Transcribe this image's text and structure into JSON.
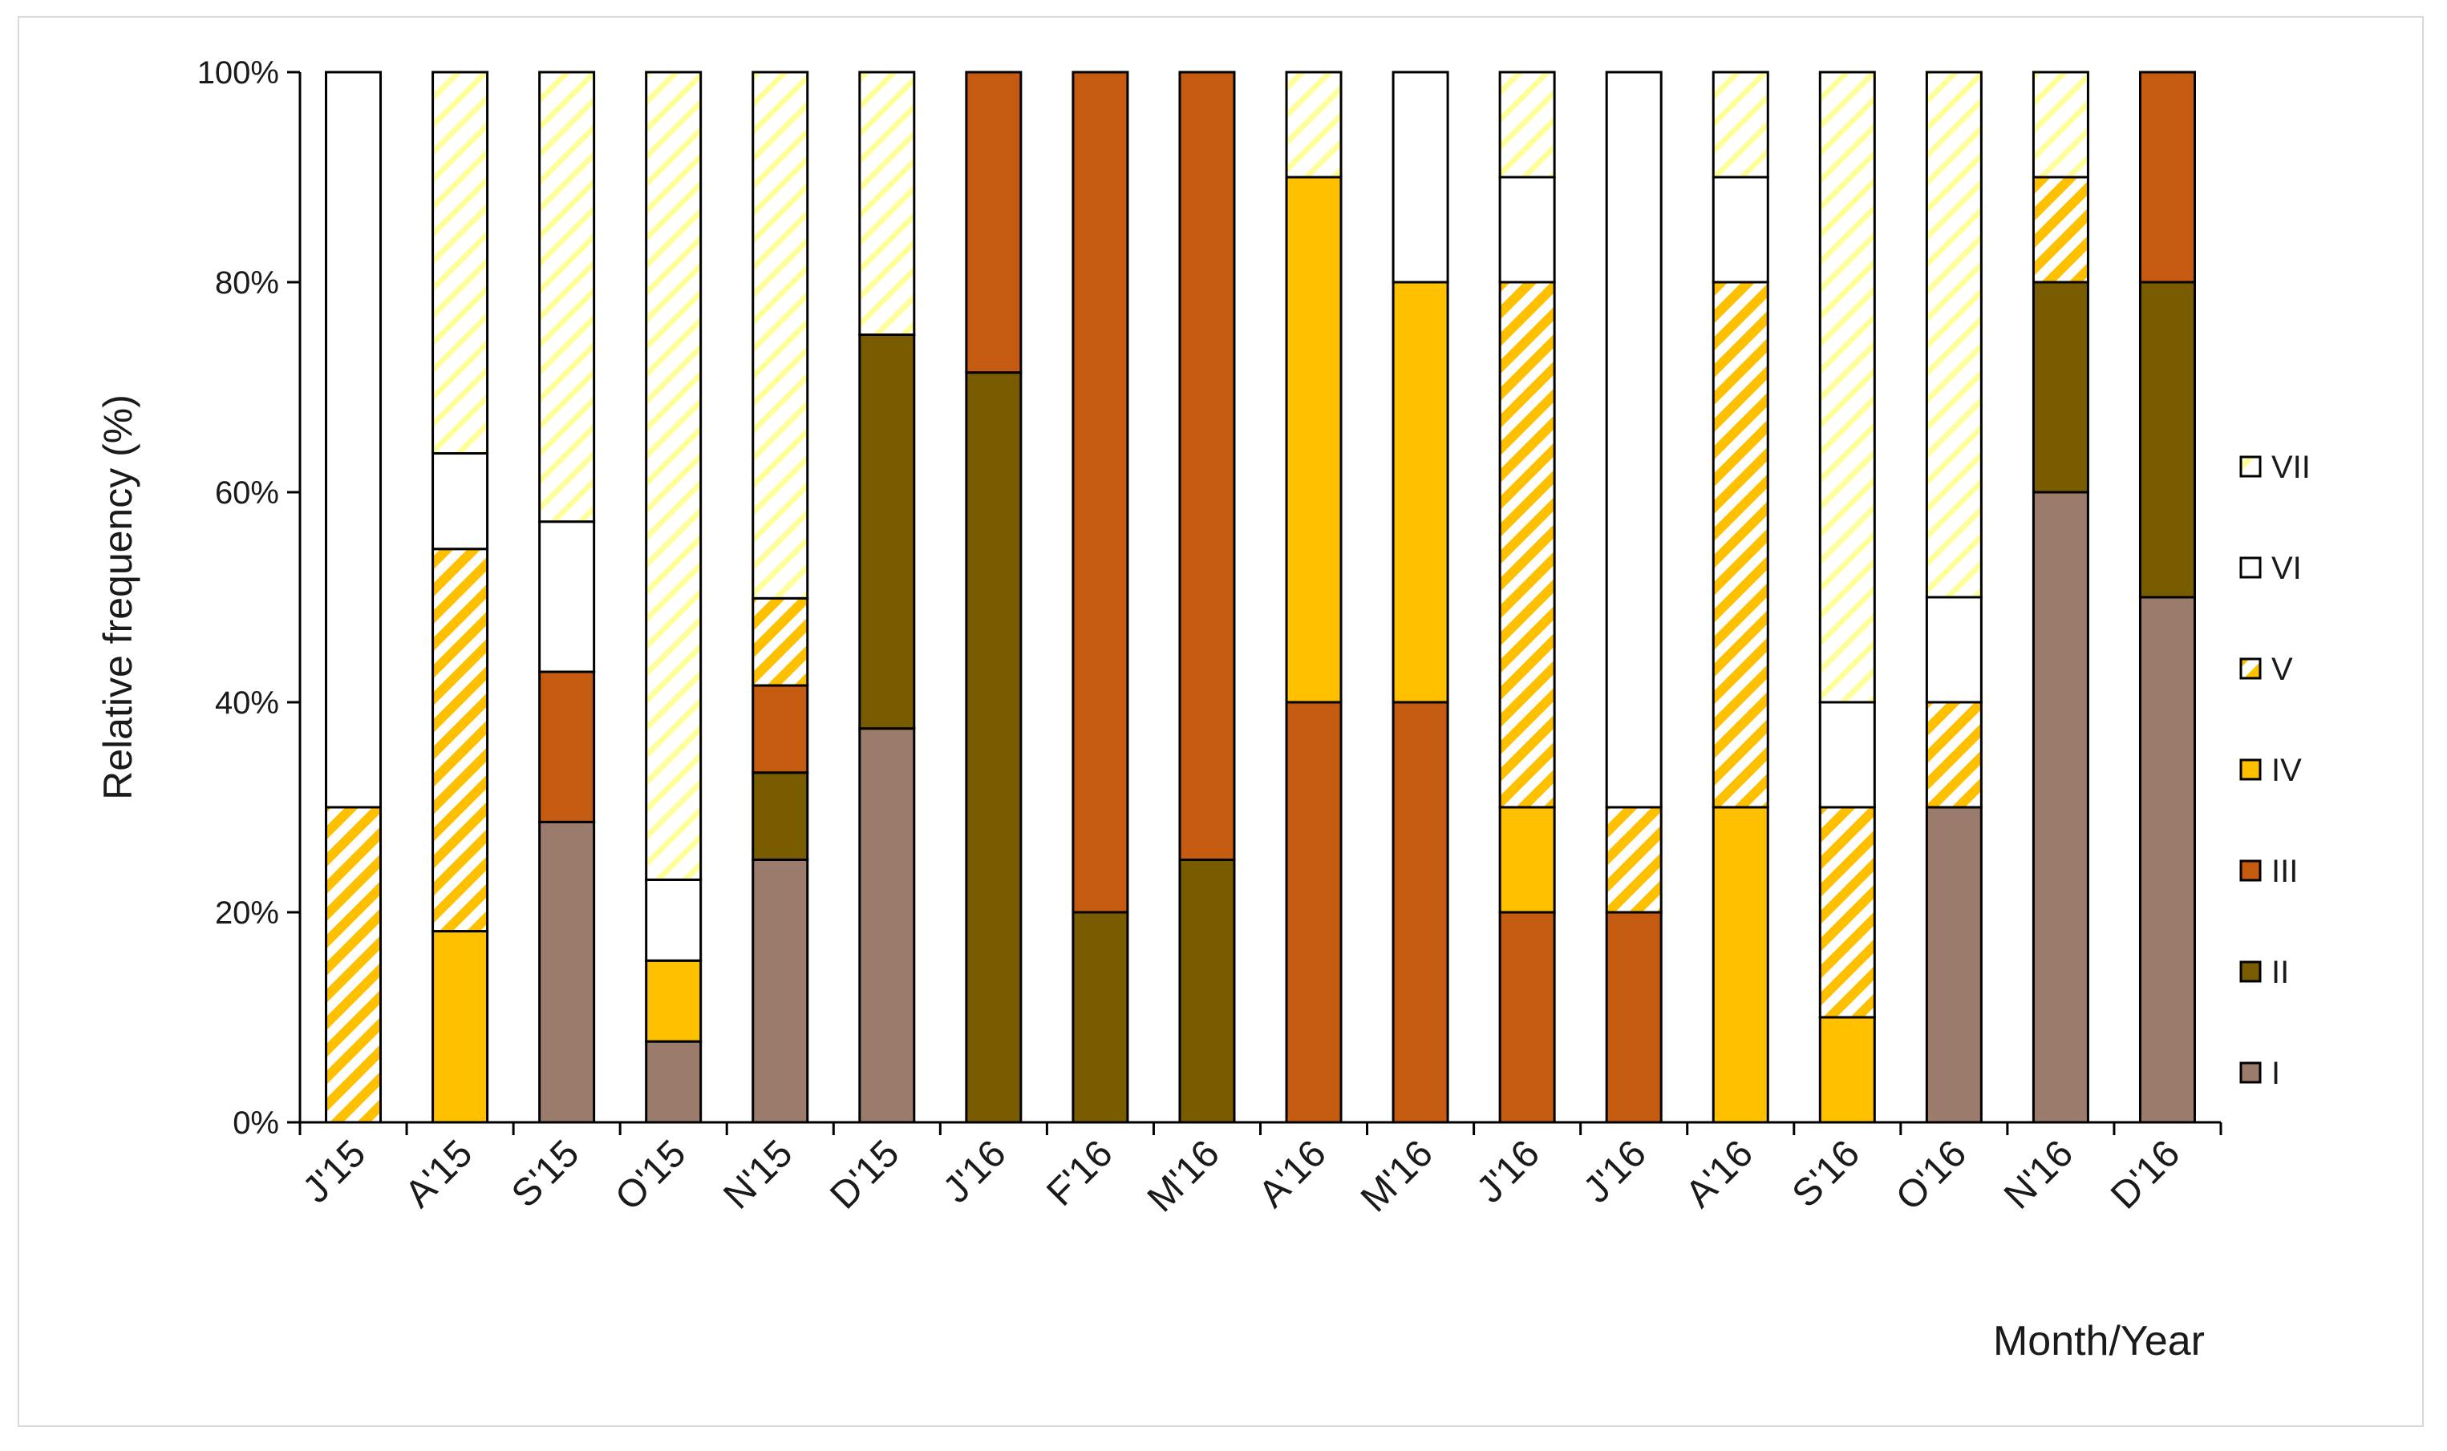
{
  "chart_data": {
    "type": "bar",
    "stacked": true,
    "percent": true,
    "title": "",
    "xlabel": "Month/Year",
    "ylabel": "Relative frequency (%)",
    "ylim": [
      0,
      100
    ],
    "yticks": [
      "0%",
      "20%",
      "40%",
      "60%",
      "80%",
      "100%"
    ],
    "legend_position": "right",
    "categories": [
      "J'15",
      "A'15",
      "S'15",
      "O'15",
      "N'15",
      "D'15",
      "J'16",
      "F'16",
      "M'16",
      "A'16",
      "M'16",
      "J'16",
      "J'16",
      "A'16",
      "S'16",
      "O'16",
      "N'16",
      "D'16"
    ],
    "series": [
      {
        "name": "I",
        "color": "#9b7b6b",
        "pattern": "solid",
        "values": [
          0,
          0,
          28.6,
          7.7,
          25,
          37.5,
          0,
          0,
          0,
          0,
          0,
          0,
          0,
          0,
          0,
          30,
          60,
          50
        ]
      },
      {
        "name": "II",
        "color": "#7a5c00",
        "pattern": "solid",
        "values": [
          0,
          0,
          0,
          0,
          8.3,
          37.5,
          71.4,
          20,
          25,
          0,
          0,
          0,
          0,
          0,
          0,
          0,
          20,
          30
        ]
      },
      {
        "name": "III",
        "color": "#c55a11",
        "pattern": "solid",
        "values": [
          0,
          0,
          14.3,
          0,
          8.3,
          0,
          28.6,
          80,
          75,
          40,
          40,
          20,
          20,
          0,
          0,
          0,
          0,
          20
        ]
      },
      {
        "name": "IV",
        "color": "#ffc000",
        "pattern": "solid",
        "values": [
          0,
          18.2,
          0,
          7.7,
          0,
          0,
          0,
          0,
          0,
          50,
          40,
          10,
          0,
          30,
          10,
          0,
          0,
          0
        ]
      },
      {
        "name": "V",
        "color": "#ffc000",
        "pattern": "hatch",
        "values": [
          30,
          36.4,
          0,
          0,
          8.3,
          0,
          0,
          0,
          0,
          0,
          0,
          50,
          10,
          50,
          20,
          10,
          10,
          0
        ]
      },
      {
        "name": "VI",
        "color": "#ffffff",
        "pattern": "solid",
        "values": [
          70,
          9.1,
          14.3,
          7.7,
          0,
          0,
          0,
          0,
          0,
          0,
          20,
          10,
          70,
          10,
          10,
          10,
          0,
          0
        ]
      },
      {
        "name": "VII",
        "color": "#ffff99",
        "pattern": "light-hatch",
        "values": [
          0,
          36.3,
          42.8,
          76.9,
          50.1,
          25,
          0,
          0,
          0,
          10,
          0,
          10,
          0,
          10,
          60,
          50,
          10,
          0
        ]
      }
    ]
  }
}
